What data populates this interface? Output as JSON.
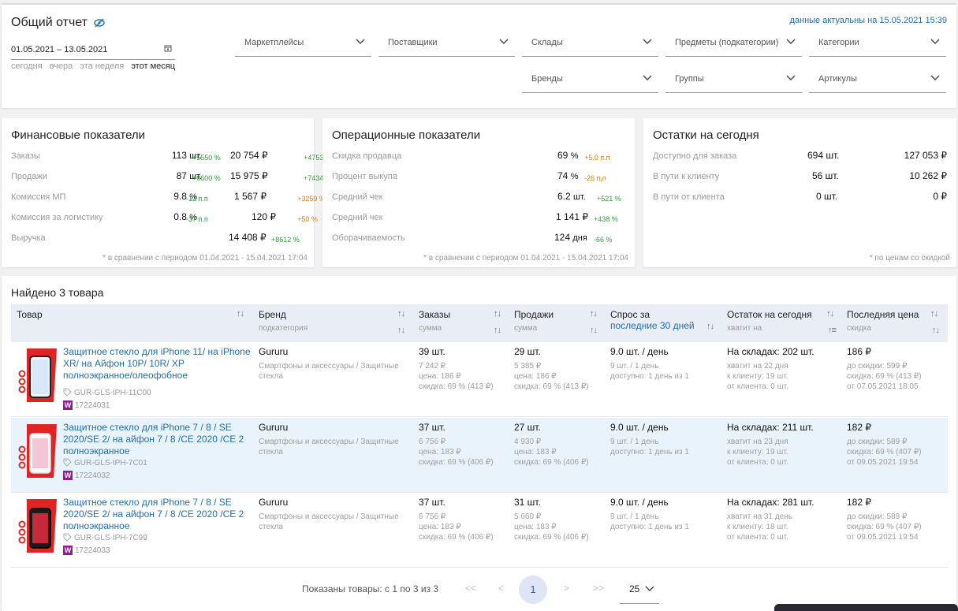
{
  "header": {
    "title": "Общий отчет",
    "actual": "данные актуальны на 15.05.2021 15:39",
    "date_range": "01.05.2021 – 13.05.2021",
    "quick": [
      "сегодня",
      "вчера",
      "эта неделя",
      "этот месяц"
    ],
    "filters": [
      "Маркетплейсы",
      "Поставщики",
      "Склады",
      "Предметы (подкатегории)",
      "Категории",
      "Бренды",
      "Группы",
      "Артикулы"
    ]
  },
  "finance": {
    "title": "Финансовые показатели",
    "rows": [
      {
        "label": "Заказы",
        "v1": "113",
        "u1": "шт.",
        "d1": "+5550 %",
        "v2": "20 754 ₽",
        "d2": "+4753 %"
      },
      {
        "label": "Продажи",
        "v1": "87",
        "u1": "шт.",
        "d1": "+8600 %",
        "v2": "15 975 ₽",
        "d2": "+7434 %"
      },
      {
        "label": "Комиссия МП",
        "v1": "9.8",
        "u1": "%",
        "d1": "-12 п.п",
        "v2": "1 567 ₽",
        "d2": "+3259 %"
      },
      {
        "label": "Комиссия за логистику",
        "v1": "0.8",
        "u1": "%",
        "d1": "-37 п.п",
        "v2": "120 ₽",
        "d2": "+50 %"
      },
      {
        "label": "Выручка",
        "v2": "14 408 ₽",
        "d2": "+8612 %"
      }
    ],
    "footnote": "* в сравнении с периодом 01.04.2021 - 15.04.2021 17:04"
  },
  "ops": {
    "title": "Операционные показатели",
    "rows": [
      {
        "label": "Скидка продавца",
        "v": "69",
        "u": "%",
        "d": "+5.0 п.п"
      },
      {
        "label": "Процент выкупа",
        "v": "74",
        "u": "%",
        "d": "-26 п.п"
      },
      {
        "label": "Средний чек",
        "v": "6.2",
        "u": "шт.",
        "d": "+521 %"
      },
      {
        "label": "Средний чек",
        "v": "1 141 ₽",
        "u": "",
        "d": "+438 %"
      },
      {
        "label": "Оборачиваемость",
        "v": "124",
        "u": "дня",
        "d": "-66 %"
      }
    ],
    "footnote": "* в сравнении с периодом 01.04.2021 - 15.04.2021 17:04"
  },
  "stock": {
    "title": "Остатки на сегодня",
    "rows": [
      {
        "label": "Доступно для заказа",
        "v1": "694 шт.",
        "v2": "127 053 ₽"
      },
      {
        "label": "В пути к клиенту",
        "v1": "56 шт.",
        "v2": "10 262 ₽"
      },
      {
        "label": "В пути от клиента",
        "v1": "0 шт.",
        "v2": "0 ₽"
      }
    ],
    "footnote": "* по ценам со скидкой"
  },
  "products": {
    "title": "Найдено 3 товара",
    "columns": {
      "product": "Товар",
      "brand": "Бренд",
      "brand_sub": "подкатегория",
      "orders": "Заказы",
      "orders_sub": "сумма",
      "sales": "Продажи",
      "sales_sub": "сумма",
      "demand": "Спрос за",
      "demand_link": "последние 30 дней",
      "stock": "Остаток на сегодня",
      "stock_sub": "хватит на",
      "price": "Последняя цена",
      "price_sub": "скидка"
    },
    "rows": [
      {
        "name": "Защитное стекло для iPhone 11/ на iPhone XR/ на Айфон 10Р/ 10R/ XР полноэкранное/олеофобное",
        "sku": "GUR-GLS-IPH-11C00",
        "wb": "17224031",
        "brand": "Gururu",
        "category": "Смартфоны и аксессуары / Защитные стекла",
        "orders": "39 шт.",
        "orders_sum": "7 242 ₽",
        "orders_price": "цена: 186 ₽",
        "orders_disc": "скидка: 69 % (413 ₽)",
        "sales": "29 шт.",
        "sales_sum": "5 385 ₽",
        "sales_price": "цена: 186 ₽",
        "sales_disc": "скидка: 69 % (413 ₽)",
        "demand": "9.0 шт. / день",
        "demand_1": "9 шт. / 1 день",
        "demand_2": "доступно: 1 день из 1",
        "stock": "На складах: 202 шт.",
        "stock_1": "хватит на 22 дня",
        "stock_2": "к клиенту: 19 шт.",
        "stock_3": "от клиента: 0 шт.",
        "price": "186 ₽",
        "price_1": "до скидки: 599 ₽",
        "price_2": "скидка: 69 % (413 ₽)",
        "price_3": "от 07.05.2021 18:05"
      },
      {
        "name": "Защитное стекло для iPhone 7 / 8 / SE 2020/SE 2/ на айфон 7 / 8 /CE 2020 /CE 2 полноэкранное",
        "sku": "GUR-GLS-IPH-7C01",
        "wb": "17224032",
        "brand": "Gururu",
        "category": "Смартфоны и аксессуары / Защитные стекла",
        "orders": "37 шт.",
        "orders_sum": "6 756 ₽",
        "orders_price": "цена: 183 ₽",
        "orders_disc": "скидка: 69 % (406 ₽)",
        "sales": "27 шт.",
        "sales_sum": "4 930 ₽",
        "sales_price": "цена: 183 ₽",
        "sales_disc": "скидка: 69 % (406 ₽)",
        "demand": "9.0 шт. / день",
        "demand_1": "9 шт. / 1 день",
        "demand_2": "доступно: 1 день из 1",
        "stock": "На складах: 211 шт.",
        "stock_1": "хватит на 23 дня",
        "stock_2": "к клиенту: 19 шт.",
        "stock_3": "от клиента: 0 шт.",
        "price": "182 ₽",
        "price_1": "до скидки: 589 ₽",
        "price_2": "скидка: 69 % (407 ₽)",
        "price_3": "от 09.05.2021 19:54"
      },
      {
        "name": "Защитное стекло для iPhone 7 / 8 / SE 2020/SE 2/ на айфон 7 / 8 /CE 2020 /CE 2 полноэкранное",
        "sku": "GUR-GLS-IPH-7C99",
        "wb": "17224033",
        "brand": "Gururu",
        "category": "Смартфоны и аксессуары / Защитные стекла",
        "orders": "37 шт.",
        "orders_sum": "6 756 ₽",
        "orders_price": "цена: 183 ₽",
        "orders_disc": "скидка: 69 % (406 ₽)",
        "sales": "31 шт.",
        "sales_sum": "5 660 ₽",
        "sales_price": "цена: 183 ₽",
        "sales_disc": "скидка: 69 % (406 ₽)",
        "demand": "9.0 шт. / день",
        "demand_1": "9 шт. / 1 день",
        "demand_2": "доступно: 1 день из 1",
        "stock": "На складах: 281 шт.",
        "stock_1": "хватит на 31 день",
        "stock_2": "к клиенту: 18 шт.",
        "stock_3": "от клиента: 0 шт.",
        "price": "182 ₽",
        "price_1": "до скидки: 589 ₽",
        "price_2": "скидка: 69 % (407 ₽)",
        "price_3": "от 09.05.2021 19:54"
      }
    ]
  },
  "pager": {
    "text": "Показаны товары: с 1 по 3 из 3",
    "first": "<<",
    "prev": "<",
    "current": "1",
    "next": ">",
    "last": ">>",
    "page_size": "25"
  }
}
